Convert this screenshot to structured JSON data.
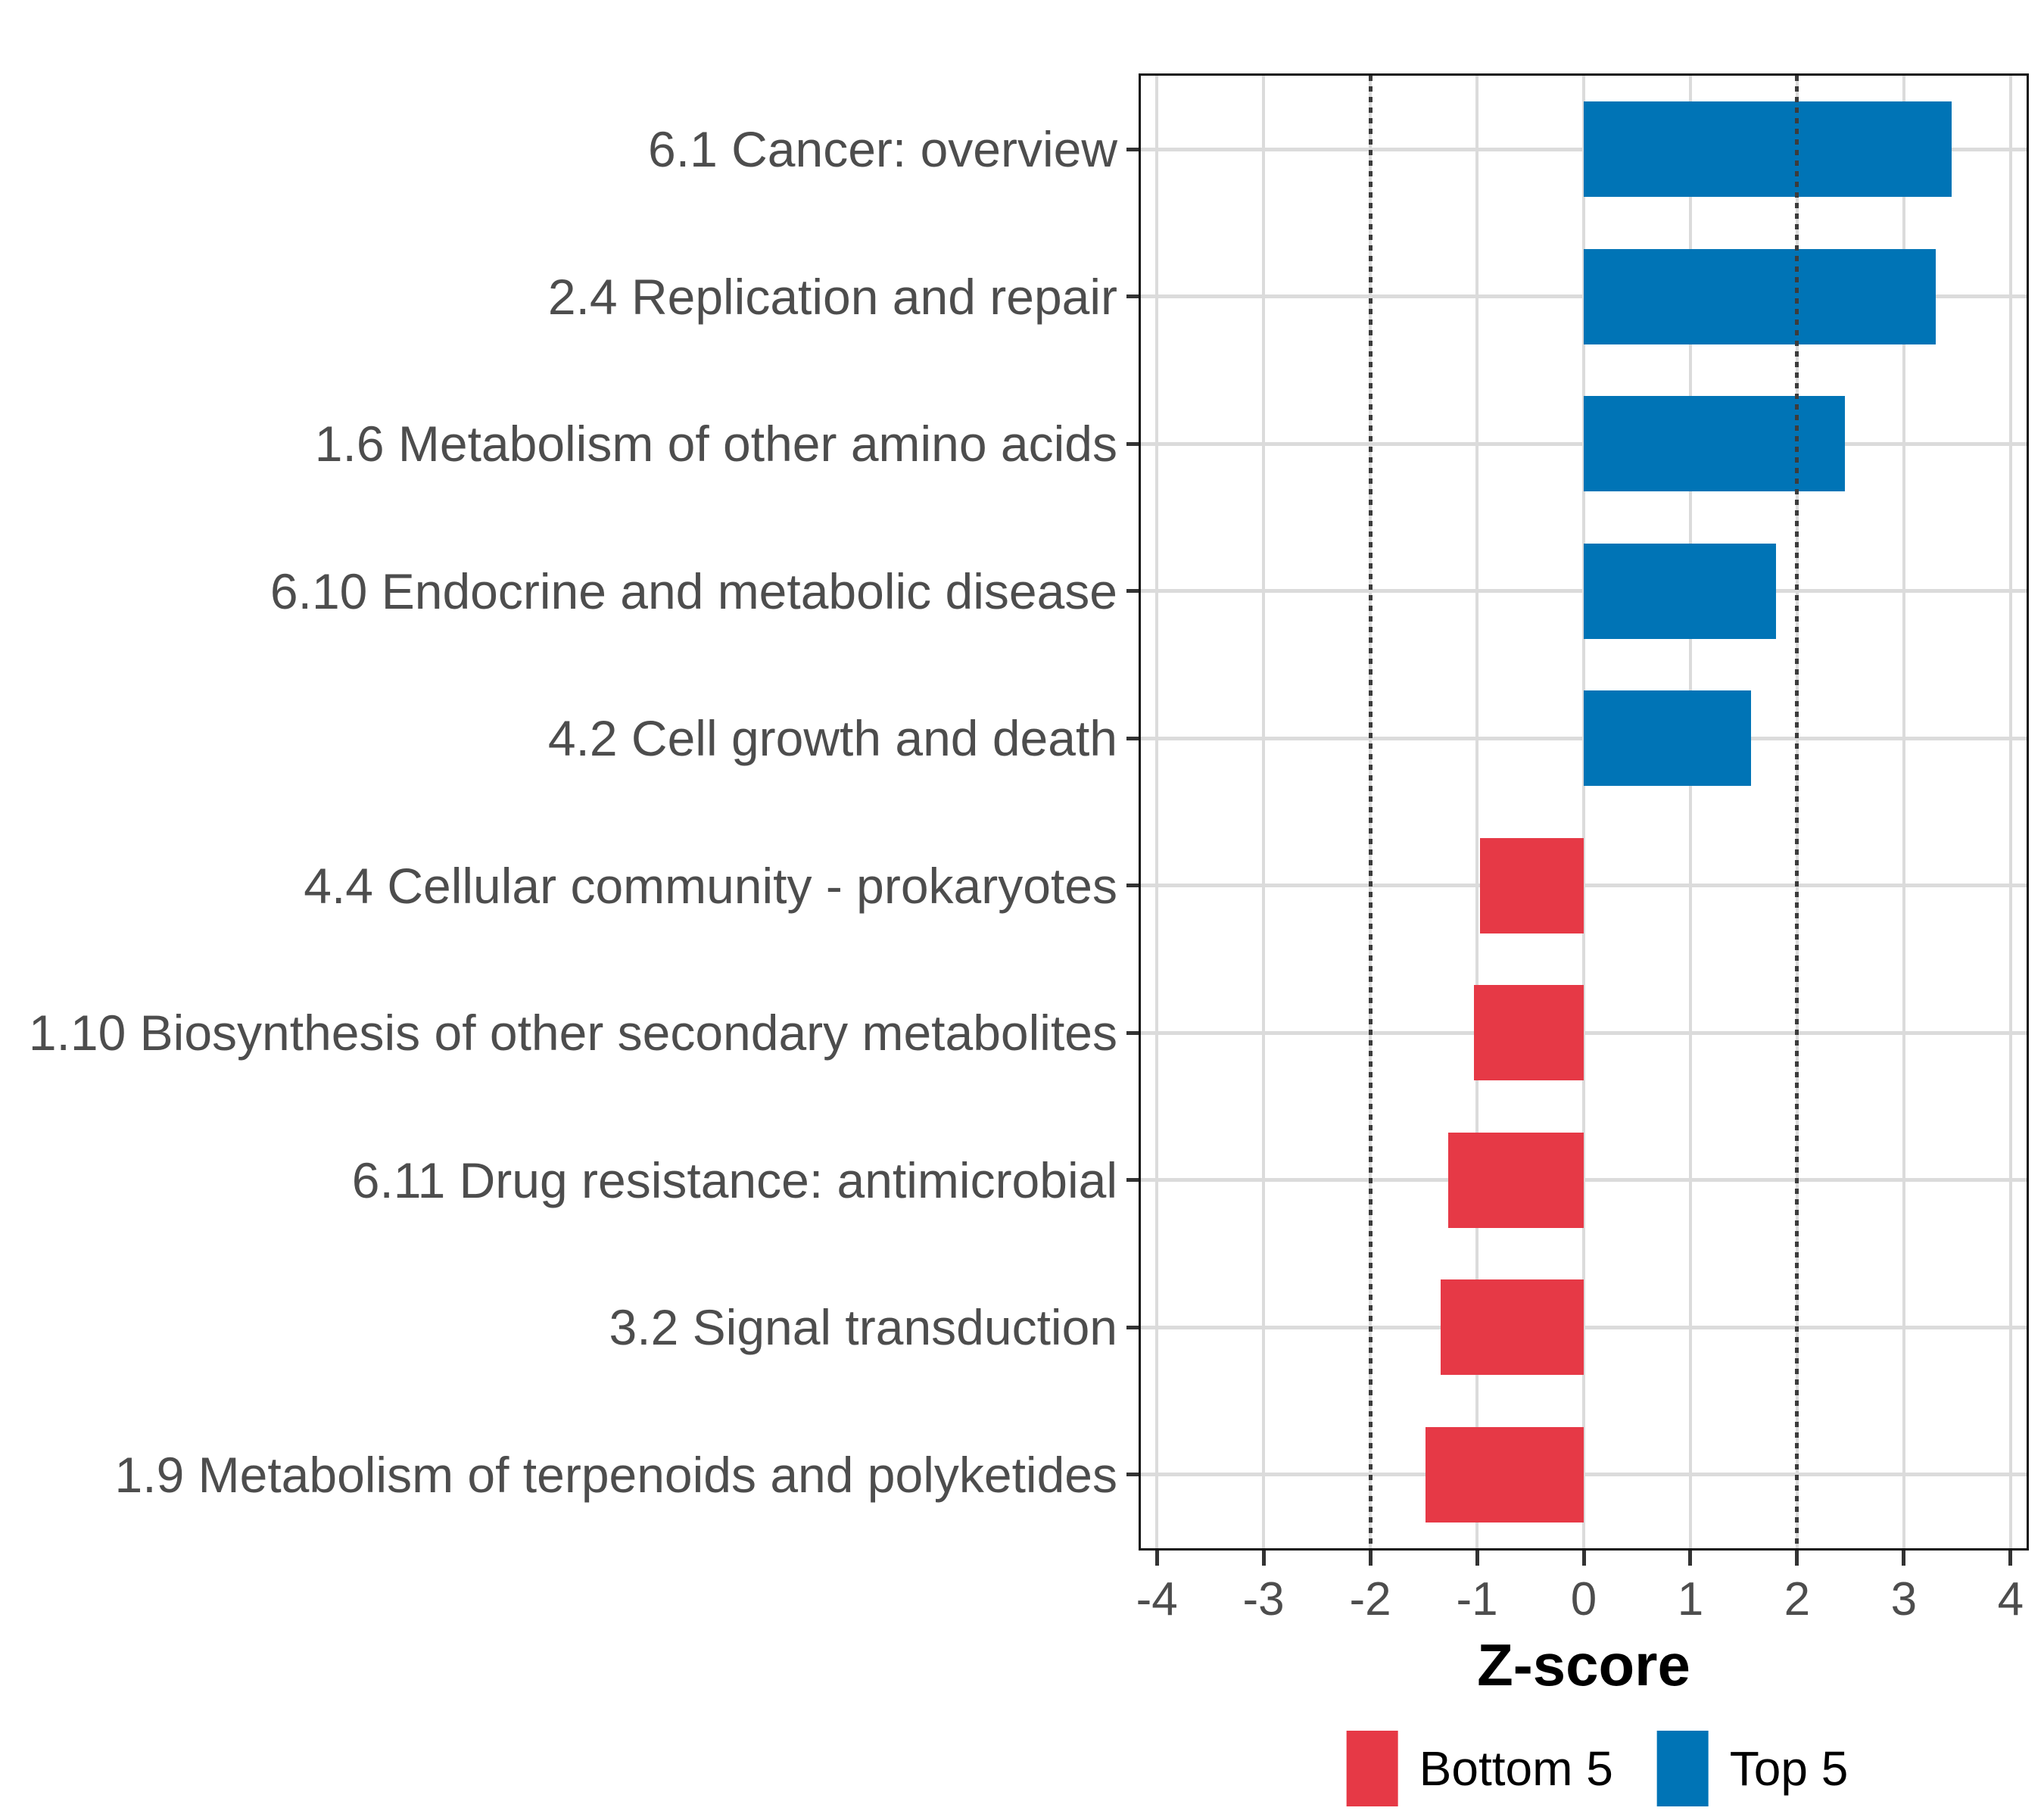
{
  "chart_data": {
    "type": "bar",
    "orientation": "horizontal",
    "title": "",
    "xlabel": "Z-score",
    "ylabel": "",
    "xlim": [
      -4,
      4
    ],
    "panel_xlim": [
      -4.15,
      4.15
    ],
    "x_ticks": [
      -4,
      -3,
      -2,
      -1,
      0,
      1,
      2,
      3,
      4
    ],
    "x_tick_labels": [
      "-4",
      "-3",
      "-2",
      "-1",
      "0",
      "1",
      "2",
      "3",
      "4"
    ],
    "reference_lines": [
      -2,
      2
    ],
    "reference_line_style": "dotted",
    "grid": true,
    "legend_position": "bottom",
    "categories": [
      "6.1 Cancer: overview",
      "2.4 Replication and repair",
      "1.6 Metabolism of other amino acids",
      "6.10 Endocrine and metabolic disease",
      "4.2 Cell growth and death",
      "4.4 Cellular community - prokaryotes",
      "1.10 Biosynthesis of other secondary metabolites",
      "6.11 Drug resistance: antimicrobial",
      "3.2 Signal transduction",
      "1.9 Metabolism of terpenoids and polyketides"
    ],
    "values": [
      3.45,
      3.3,
      2.45,
      1.8,
      1.57,
      -0.97,
      -1.03,
      -1.27,
      -1.34,
      -1.48
    ],
    "groups": [
      "Top 5",
      "Top 5",
      "Top 5",
      "Top 5",
      "Top 5",
      "Bottom 5",
      "Bottom 5",
      "Bottom 5",
      "Bottom 5",
      "Bottom 5"
    ],
    "colors": {
      "Top 5": "#0074B6",
      "Bottom 5": "#E63946"
    },
    "legend": [
      {
        "label": "Bottom 5",
        "color": "#E63946"
      },
      {
        "label": "Top 5",
        "color": "#0074B6"
      }
    ]
  }
}
